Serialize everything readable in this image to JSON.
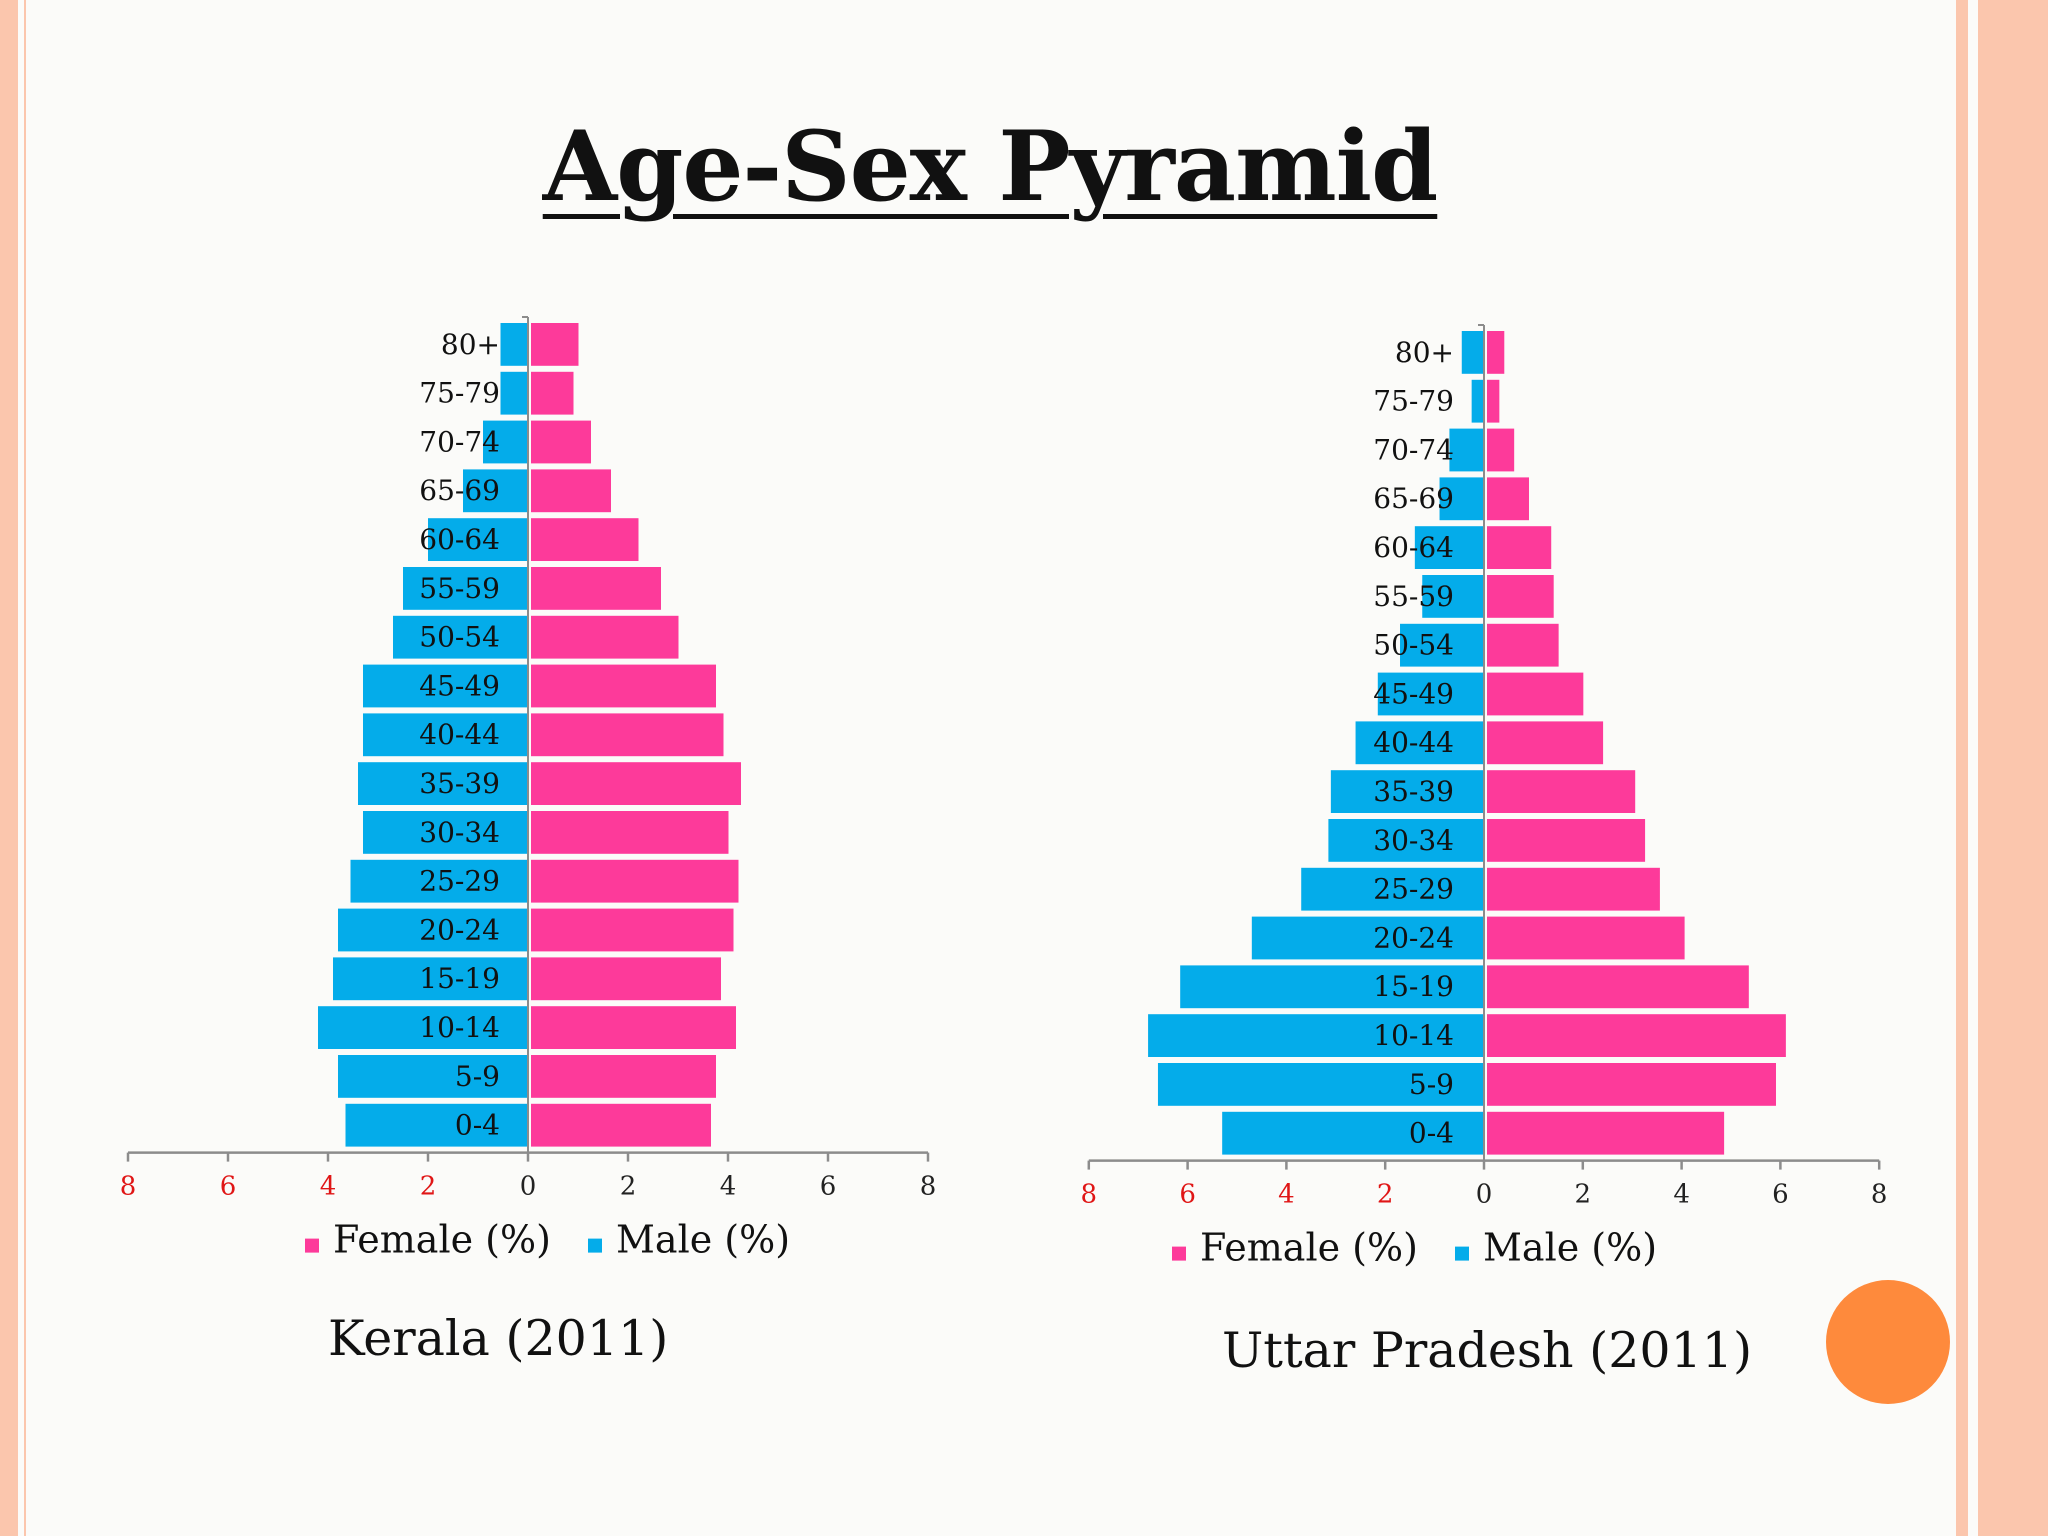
{
  "slide": {
    "title": "Age-Sex Pyramid",
    "colors": {
      "female": "#fd3a9a",
      "male": "#04acea",
      "accent": "#fe8a3c",
      "border": "#fbc6ad"
    }
  },
  "chart_data": [
    {
      "type": "bar",
      "orientation": "horizontal-pyramid",
      "caption": "Kerala (2011)",
      "categories": [
        "0-4",
        "5-9",
        "10-14",
        "15-19",
        "20-24",
        "25-29",
        "30-34",
        "35-39",
        "40-44",
        "45-49",
        "50-54",
        "55-59",
        "60-64",
        "65-69",
        "70-74",
        "75-79",
        "80+"
      ],
      "series": [
        {
          "name": "Female (%)",
          "side": "right",
          "values": [
            3.6,
            3.7,
            4.1,
            3.8,
            4.05,
            4.15,
            3.95,
            4.2,
            3.85,
            3.7,
            2.95,
            2.6,
            2.15,
            1.6,
            1.2,
            0.85,
            0.95
          ]
        },
        {
          "name": "Male (%)",
          "side": "left",
          "values": [
            3.65,
            3.8,
            4.2,
            3.9,
            3.8,
            3.55,
            3.3,
            3.4,
            3.3,
            3.3,
            2.7,
            2.5,
            2.0,
            1.3,
            0.9,
            0.55,
            0.55
          ]
        }
      ],
      "xticks": [
        "8",
        "6",
        "4",
        "2",
        "0",
        "2",
        "4",
        "6",
        "8"
      ],
      "xlim": [
        -8,
        8
      ],
      "legend": [
        "Female (%)",
        "Male (%)"
      ],
      "legend_position": "bottom"
    },
    {
      "type": "bar",
      "orientation": "horizontal-pyramid",
      "caption": "Uttar Pradesh (2011)",
      "categories": [
        "0-4",
        "5-9",
        "10-14",
        "15-19",
        "20-24",
        "25-29",
        "30-34",
        "35-39",
        "40-44",
        "45-49",
        "50-54",
        "55-59",
        "60-64",
        "65-69",
        "70-74",
        "75-79",
        "80+"
      ],
      "series": [
        {
          "name": "Female (%)",
          "side": "right",
          "values": [
            4.8,
            5.85,
            6.05,
            5.3,
            4.0,
            3.5,
            3.2,
            3.0,
            2.35,
            1.95,
            1.45,
            1.35,
            1.3,
            0.85,
            0.55,
            0.25,
            0.35
          ]
        },
        {
          "name": "Male (%)",
          "side": "left",
          "values": [
            5.3,
            6.6,
            6.8,
            6.15,
            4.7,
            3.7,
            3.15,
            3.1,
            2.6,
            2.15,
            1.7,
            1.25,
            1.4,
            0.9,
            0.7,
            0.25,
            0.45
          ]
        }
      ],
      "xticks": [
        "8",
        "6",
        "4",
        "2",
        "0",
        "2",
        "4",
        "6",
        "8"
      ],
      "xlim": [
        -8,
        8
      ],
      "legend": [
        "Female (%)",
        "Male (%)"
      ],
      "legend_position": "bottom"
    }
  ]
}
